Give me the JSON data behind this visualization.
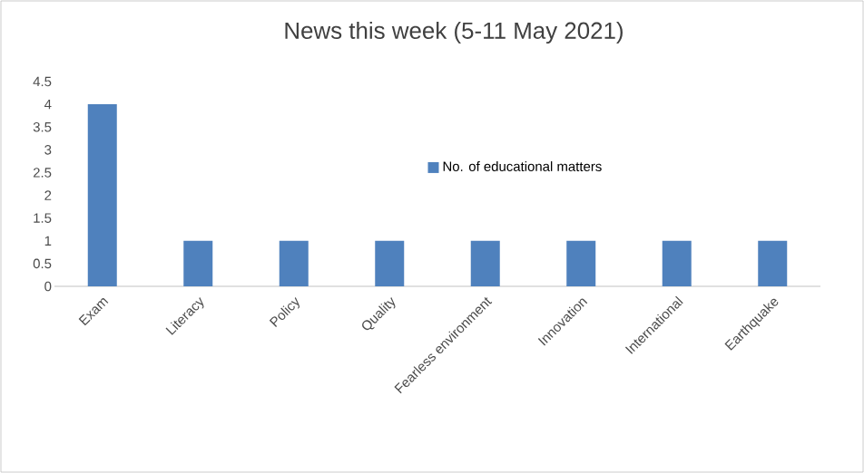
{
  "chart_data": {
    "type": "bar",
    "title": "News this week (5-11 May 2021)",
    "categories": [
      "Exam",
      "Literacy",
      "Policy",
      "Quality",
      "Fearless environment",
      "Innovation",
      "International",
      "Earthquake"
    ],
    "series": [
      {
        "name": "No. of educational matters",
        "color": "#4f81bd",
        "values": [
          4,
          1,
          1,
          1,
          1,
          1,
          1,
          1
        ]
      }
    ],
    "ylim": [
      0,
      4.5
    ],
    "yticks": [
      0,
      0.5,
      1,
      1.5,
      2,
      2.5,
      3,
      3.5,
      4,
      4.5
    ],
    "legend": "center"
  }
}
